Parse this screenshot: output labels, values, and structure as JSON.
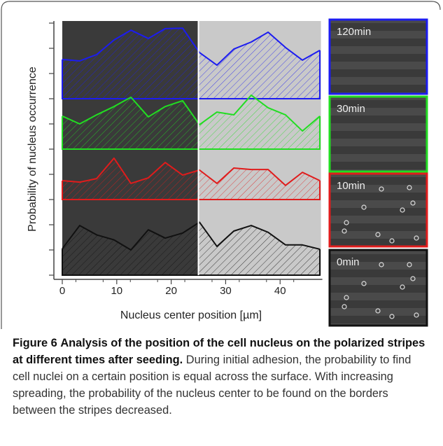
{
  "chart_data": {
    "type": "area",
    "xlabel": "Nucleus center position [µm]",
    "ylabel": "Probability of nucleus occurrence",
    "x": [
      0,
      3.2,
      6.3,
      9.5,
      12.6,
      15.8,
      18.9,
      22.1,
      25.2,
      28.4,
      31.5,
      34.7,
      37.8,
      41,
      44.1,
      47.3
    ],
    "series": [
      {
        "name": "120min",
        "color": "#1c1cf0",
        "base": 7,
        "values": [
          8.56,
          8.5,
          8.75,
          9.33,
          9.72,
          9.39,
          9.78,
          9.8,
          8.83,
          8.33,
          8.97,
          9.25,
          9.64,
          9.03,
          8.53,
          8.92
        ]
      },
      {
        "name": "30min",
        "color": "#22dd22",
        "base": 5,
        "values": [
          6.31,
          6.0,
          6.36,
          6.69,
          7.06,
          6.28,
          6.69,
          6.92,
          5.97,
          6.47,
          6.36,
          7.14,
          6.64,
          6.36,
          5.72,
          6.31
        ]
      },
      {
        "name": "10min",
        "color": "#e01c1c",
        "base": 3,
        "values": [
          3.75,
          3.69,
          3.83,
          4.64,
          3.64,
          3.86,
          4.47,
          3.97,
          4.17,
          3.64,
          4.25,
          4.19,
          4.19,
          3.56,
          4.08,
          3.75
        ]
      },
      {
        "name": "0min",
        "color": "#111111",
        "base": 0,
        "values": [
          1.05,
          1.97,
          1.6,
          1.4,
          1.0,
          1.8,
          1.47,
          1.67,
          2.1,
          1.14,
          1.75,
          1.97,
          1.7,
          1.2,
          1.2,
          1.03
        ]
      }
    ],
    "regions": [
      {
        "from": 0,
        "to": 25,
        "color": "#3a3a3a"
      },
      {
        "from": 25,
        "to": 47.5,
        "color": "#c9c9c9"
      }
    ],
    "xlim": [
      0,
      47.5
    ],
    "xticks": [
      0,
      10,
      20,
      30,
      40
    ],
    "ylim": [
      0,
      10
    ],
    "yticks": [
      0,
      1,
      2,
      3,
      4,
      5,
      6,
      7,
      8,
      9,
      10
    ],
    "ytick_labels": false
  },
  "caption": {
    "label": "Figure 6",
    "title": "Analysis of the position of the cell nucleus on the polarized stripes at different times after seeding.",
    "text": "During initial adhesion, the probability to find cell nuclei on a certain position is equal across the surface. With increasing spreading, the probability of the nucleus center to be found on the borders between the stripes decreased."
  }
}
